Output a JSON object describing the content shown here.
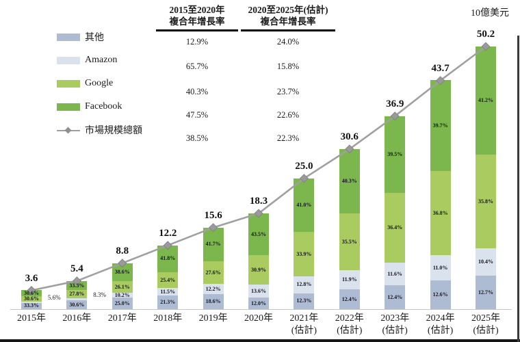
{
  "cagr_table": {
    "columns": [
      {
        "id": "cagr-2015-2020",
        "header": [
          "2015至2020年",
          "複合年增長率"
        ],
        "values": [
          "12.9%",
          "65.7%",
          "40.3%",
          "47.5%",
          "38.5%"
        ]
      },
      {
        "id": "cagr-2020-2025",
        "header": [
          "2020至2025年(估計)",
          "複合年增長率"
        ],
        "values": [
          "24.0%",
          "15.8%",
          "23.7%",
          "22.6%",
          "22.3%"
        ]
      }
    ]
  },
  "legend": {
    "items": [
      {
        "id": "others",
        "label": "其他",
        "swatch": "bar",
        "color": "#aebcd3"
      },
      {
        "id": "amazon",
        "label": "Amazon",
        "swatch": "bar",
        "color": "#d9e2ed"
      },
      {
        "id": "google",
        "label": "Google",
        "swatch": "bar",
        "color": "#a9cb5f"
      },
      {
        "id": "facebook",
        "label": "Facebook",
        "swatch": "bar",
        "color": "#7cb74e"
      },
      {
        "id": "total-line",
        "label": "市場規模總額",
        "swatch": "line",
        "color": "#9d9d9d"
      }
    ]
  },
  "chart_data": {
    "type": "bar",
    "stacked": true,
    "unit_label": "10億美元",
    "ylim": [
      0,
      52
    ],
    "grid": false,
    "legend_position": "left",
    "categories": [
      {
        "label": "2015年",
        "sublabel": ""
      },
      {
        "label": "2016年",
        "sublabel": ""
      },
      {
        "label": "2017年",
        "sublabel": ""
      },
      {
        "label": "2018年",
        "sublabel": ""
      },
      {
        "label": "2019年",
        "sublabel": ""
      },
      {
        "label": "2020年",
        "sublabel": ""
      },
      {
        "label": "2021年",
        "sublabel": "(估計)"
      },
      {
        "label": "2022年",
        "sublabel": "(估計)"
      },
      {
        "label": "2023年",
        "sublabel": "(估計)"
      },
      {
        "label": "2024年",
        "sublabel": "(估計)"
      },
      {
        "label": "2025年",
        "sublabel": "(估計)"
      }
    ],
    "totals": [
      3.6,
      5.4,
      8.8,
      12.2,
      15.6,
      18.3,
      25.0,
      30.6,
      36.9,
      43.7,
      50.2
    ],
    "series": [
      {
        "id": "others",
        "name": "其他",
        "color": "#aebcd3",
        "pct": [
          33.3,
          30.6,
          25.0,
          21.3,
          18.6,
          12.0,
          12.3,
          12.4,
          12.4,
          12.6,
          12.7
        ]
      },
      {
        "id": "amazon",
        "name": "Amazon",
        "color": "#d9e2ed",
        "pct": [
          5.6,
          8.3,
          10.2,
          11.5,
          12.2,
          13.6,
          12.8,
          11.9,
          11.6,
          11.0,
          10.4
        ]
      },
      {
        "id": "google",
        "name": "Google",
        "color": "#a9cb5f",
        "pct": [
          30.6,
          27.8,
          26.1,
          25.4,
          27.6,
          30.9,
          33.9,
          35.5,
          36.4,
          36.8,
          35.8
        ]
      },
      {
        "id": "facebook",
        "name": "Facebook",
        "color": "#7cb74e",
        "pct": [
          30.6,
          33.3,
          38.6,
          41.8,
          41.7,
          43.5,
          41.0,
          40.3,
          39.5,
          39.7,
          41.2
        ]
      }
    ],
    "line_series": {
      "id": "total-line",
      "name": "市場規模總額",
      "color": "#a0a0a0",
      "marker": "diamond",
      "values": [
        3.6,
        5.4,
        8.8,
        12.2,
        15.6,
        18.3,
        25.0,
        30.6,
        36.9,
        43.7,
        50.2
      ]
    },
    "outside_labels": [
      {
        "category_index": 0,
        "series_id": "amazon"
      },
      {
        "category_index": 1,
        "series_id": "amazon"
      }
    ]
  }
}
